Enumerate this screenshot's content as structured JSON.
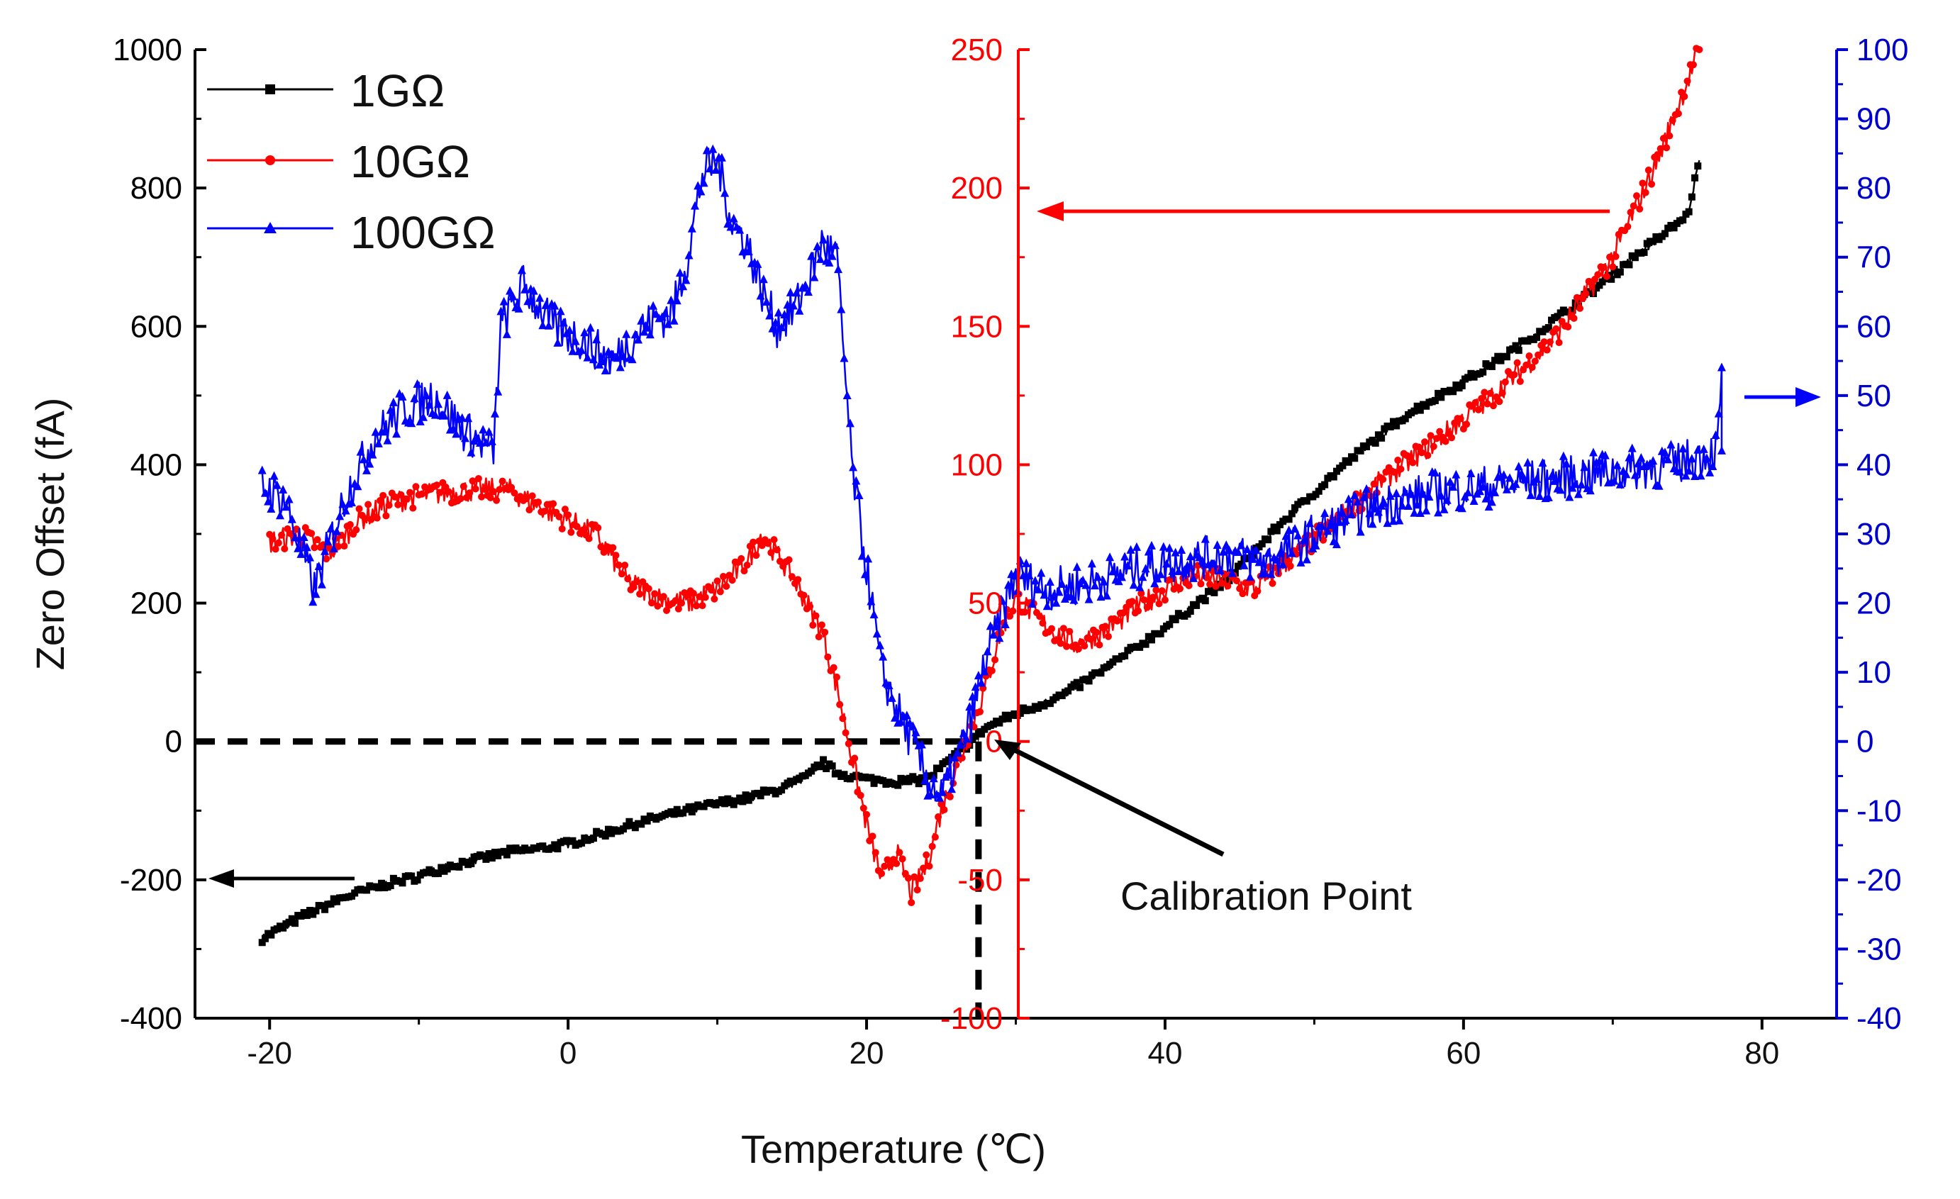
{
  "chart_data": {
    "type": "line",
    "title": "",
    "xlabel": "Temperature (℃)",
    "x_axis": {
      "range": [
        -25,
        85
      ],
      "ticks": [
        -20,
        0,
        20,
        40,
        60,
        80
      ],
      "tick_labels": [
        "-20",
        "0",
        "20",
        "40",
        "60",
        "80"
      ]
    },
    "y_axes": [
      {
        "id": "left",
        "label": "Zero Offset (fA)",
        "color": "#000000",
        "range": [
          -400,
          1000
        ],
        "ticks": [
          -400,
          -200,
          0,
          200,
          400,
          600,
          800,
          1000
        ],
        "tick_labels": [
          "-400",
          "-200",
          "0",
          "200",
          "400",
          "600",
          "800",
          "1000"
        ]
      },
      {
        "id": "red",
        "label": "",
        "color": "#ff0000",
        "range": [
          -100,
          250
        ],
        "ticks": [
          -100,
          -50,
          0,
          50,
          100,
          150,
          200,
          250
        ],
        "tick_labels": [
          "-100",
          "-50",
          "0",
          "50",
          "100",
          "150",
          "200",
          "250"
        ]
      },
      {
        "id": "blue",
        "label": "",
        "color": "#0000cc",
        "range": [
          -40,
          100
        ],
        "ticks": [
          -40,
          -30,
          -20,
          -10,
          0,
          10,
          20,
          30,
          40,
          50,
          60,
          70,
          80,
          90,
          100
        ],
        "tick_labels": [
          "-40",
          "-30",
          "-20",
          "-10",
          "0",
          "10",
          "20",
          "30",
          "40",
          "50",
          "60",
          "70",
          "80",
          "90",
          "100"
        ]
      }
    ],
    "series": [
      {
        "name": "1GΩ",
        "color": "#000000",
        "marker": "square",
        "axis": "left",
        "x": [
          -20.5,
          -18,
          -15,
          -12,
          -10,
          -8,
          -6,
          -4,
          -2,
          0,
          2,
          4,
          6,
          8,
          10,
          12,
          14,
          16,
          17,
          18,
          20,
          22,
          24,
          26,
          28,
          30,
          33,
          36,
          40,
          44,
          48,
          52,
          56,
          60,
          64,
          68,
          72,
          75,
          75.8
        ],
        "y": [
          -285,
          -255,
          -225,
          -205,
          -195,
          -180,
          -170,
          -160,
          -155,
          -148,
          -135,
          -122,
          -110,
          -100,
          -90,
          -82,
          -70,
          -52,
          -30,
          -45,
          -55,
          -58,
          -55,
          -20,
          20,
          40,
          65,
          105,
          165,
          230,
          320,
          400,
          470,
          520,
          575,
          640,
          710,
          760,
          840
        ]
      },
      {
        "name": "10GΩ",
        "color": "#ff0000",
        "marker": "circle",
        "axis": "red",
        "x": [
          -20,
          -18,
          -16,
          -14,
          -12,
          -10,
          -8,
          -6,
          -4,
          -2,
          0,
          2,
          4,
          6,
          8,
          10,
          12,
          13,
          15,
          17,
          18,
          19,
          20,
          21,
          22,
          23,
          24,
          25,
          26,
          27,
          28,
          29,
          30,
          32,
          34,
          36,
          38,
          40,
          42,
          44,
          46,
          50,
          54,
          58,
          62,
          66,
          70,
          73,
          75.8
        ],
        "y": [
          72,
          75,
          68,
          80,
          86,
          89,
          90,
          91,
          91,
          85,
          80,
          74,
          58,
          52,
          50,
          55,
          65,
          75,
          60,
          40,
          20,
          -5,
          -30,
          -50,
          -40,
          -55,
          -45,
          -25,
          -10,
          5,
          20,
          40,
          52,
          42,
          35,
          40,
          48,
          55,
          60,
          58,
          55,
          73,
          92,
          108,
          125,
          145,
          175,
          210,
          250
        ]
      },
      {
        "name": "100GΩ",
        "color": "#0000ff",
        "marker": "triangle",
        "axis": "blue",
        "x": [
          -20.5,
          -19,
          -17,
          -15,
          -13,
          -11,
          -9,
          -7,
          -5,
          -4.5,
          -3,
          -1,
          1,
          3,
          5,
          7,
          8,
          9,
          10,
          11,
          12,
          13,
          14,
          15,
          16,
          17,
          18,
          19,
          20,
          21,
          22,
          23,
          24,
          25,
          26,
          27,
          28,
          29,
          30,
          32,
          35,
          38,
          41,
          44,
          47,
          50,
          54,
          58,
          62,
          66,
          70,
          74,
          77,
          77.3,
          77.3
        ],
        "y": [
          37,
          35,
          22,
          35,
          44,
          48,
          50,
          45,
          42,
          60,
          66,
          60,
          58,
          55,
          60,
          62,
          70,
          82,
          84,
          75,
          72,
          65,
          60,
          62,
          66,
          72,
          70,
          40,
          25,
          10,
          5,
          0,
          -5,
          -8,
          -3,
          3,
          12,
          18,
          24,
          22,
          23,
          25,
          26,
          27,
          26,
          30,
          34,
          36,
          37,
          38,
          39,
          40,
          42,
          52,
          42
        ]
      }
    ],
    "legend": {
      "position": "top-left"
    },
    "annotations": [
      {
        "text": "Calibration Point",
        "x": 27,
        "y_left": 0
      }
    ],
    "reference_lines": [
      {
        "type": "horizontal-dashed",
        "y_left": 0,
        "from_x": -25,
        "to_x": 27.5
      },
      {
        "type": "vertical-dashed",
        "x": 27.5,
        "from_y_left": 0,
        "to_y_left": -400
      }
    ],
    "axis_direction_arrows": [
      {
        "series": "1GΩ",
        "points_to": "left axis",
        "at_y_left": -200
      },
      {
        "series": "10GΩ",
        "points_to": "red axis",
        "at_y_left": 760
      },
      {
        "series": "100GΩ",
        "points_to": "blue axis",
        "at_y_left": 500
      }
    ]
  }
}
